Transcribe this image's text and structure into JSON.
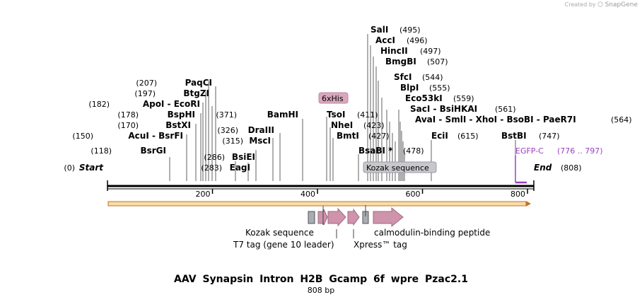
{
  "credit": {
    "prefix": "Created by",
    "brand": "SnapGene"
  },
  "title": "AAV  Synapsin  Intron H2B Gcamp 6f wpre  Pzac2.1",
  "subtitle": "808 bp",
  "sequence_length": 808,
  "ruler": {
    "ticks": [
      200,
      400,
      600,
      800
    ]
  },
  "ends": [
    {
      "name": "Start",
      "pos": "(0)"
    },
    {
      "name": "End",
      "pos": "(808)"
    }
  ],
  "sites": [
    {
      "name": "SalI",
      "pos": "(495)"
    },
    {
      "name": "AccI",
      "pos": "(496)"
    },
    {
      "name": "HincII",
      "pos": "(497)"
    },
    {
      "name": "BmgBI",
      "pos": "(507)"
    },
    {
      "name": "SfcI",
      "pos": "(544)"
    },
    {
      "name": "BlpI",
      "pos": "(555)"
    },
    {
      "name": "Eco53kI",
      "pos": "(559)"
    },
    {
      "name": "SacI - BsiHKAI",
      "pos": "(561)"
    },
    {
      "name": "AvaI - SmlI - XhoI - BsoBI - PaeR7I",
      "pos": "(564)"
    },
    {
      "name": "EciI",
      "pos": "(615)"
    },
    {
      "name": "BstBI",
      "pos": "(747)"
    },
    {
      "name": "PaqCI",
      "pos": "(207)"
    },
    {
      "name": "BtgZI",
      "pos": "(197)"
    },
    {
      "name": "ApoI - EcoRI",
      "pos": "(182)"
    },
    {
      "name": "BspHI",
      "pos": "(178)"
    },
    {
      "name": "BstXI",
      "pos": "(170)"
    },
    {
      "name": "AcuI - BsrFI",
      "pos": "(150)"
    },
    {
      "name": "BsrGI",
      "pos": "(118)"
    },
    {
      "name": "BamHI",
      "pos": "(371)"
    },
    {
      "name": "DraIII",
      "pos": "(326)"
    },
    {
      "name": "MscI",
      "pos": "(315)"
    },
    {
      "name": "BsiEI",
      "pos": "(286)"
    },
    {
      "name": "EagI",
      "pos": "(283)"
    },
    {
      "name": "TsoI",
      "pos": "(411)"
    },
    {
      "name": "NheI",
      "pos": "(423)"
    },
    {
      "name": "BmtI",
      "pos": "(427)"
    },
    {
      "name": "BsaBI *",
      "pos": "(478)"
    }
  ],
  "features": [
    {
      "name": "6xHis"
    },
    {
      "name": "Kozak sequence"
    },
    {
      "name": "EGFP-C",
      "range": "(776 .. 797)"
    },
    {
      "name": "Kozak sequence"
    },
    {
      "name": "T7 tag (gene 10 leader)"
    },
    {
      "name": "Xpress™ tag"
    },
    {
      "name": "calmodulin-binding peptide"
    }
  ],
  "colors": {
    "feature_label_bg": "#d9a7bd",
    "feature_label_border": "#b88aa2",
    "kozak_bg": "#c8c8cc",
    "arrow_fill": "#cf93ab",
    "arrow_stroke": "#9b6b80",
    "box_fill": "#a9acb2",
    "egfp": "#9b3fc1",
    "orf_fill": "#f6dca8",
    "orf_stroke": "#c8712a"
  }
}
